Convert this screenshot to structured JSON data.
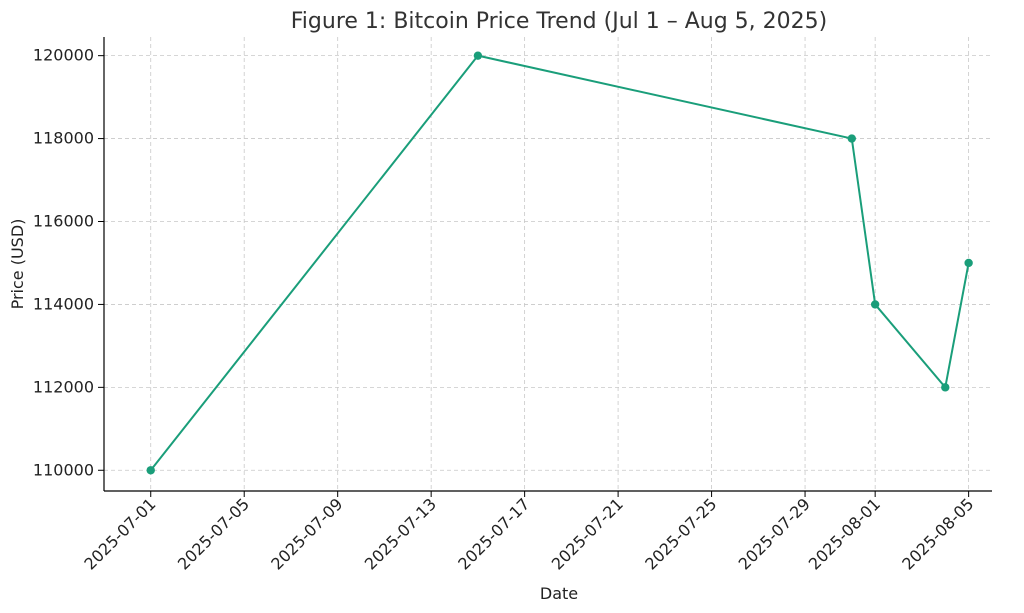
{
  "chart_data": {
    "type": "line",
    "title": "Figure 1: Bitcoin Price Trend (Jul 1 – Aug 5, 2025)",
    "xlabel": "Date",
    "ylabel": "Price (USD)",
    "x_ticks": [
      "2025-07-01",
      "2025-07-05",
      "2025-07-09",
      "2025-07-13",
      "2025-07-17",
      "2025-07-21",
      "2025-07-25",
      "2025-07-29",
      "2025-08-01",
      "2025-08-05"
    ],
    "y_ticks": [
      110000,
      112000,
      114000,
      116000,
      118000,
      120000
    ],
    "xlim": [
      "2025-06-29",
      "2025-08-06"
    ],
    "ylim": [
      109500,
      120450
    ],
    "grid": true,
    "series": [
      {
        "color": "#1a9e7a",
        "points": [
          {
            "x": "2025-07-01",
            "y": 110000
          },
          {
            "x": "2025-07-15",
            "y": 120000
          },
          {
            "x": "2025-07-31",
            "y": 118000
          },
          {
            "x": "2025-08-01",
            "y": 114000
          },
          {
            "x": "2025-08-04",
            "y": 112000
          },
          {
            "x": "2025-08-05",
            "y": 115000
          }
        ]
      }
    ]
  }
}
